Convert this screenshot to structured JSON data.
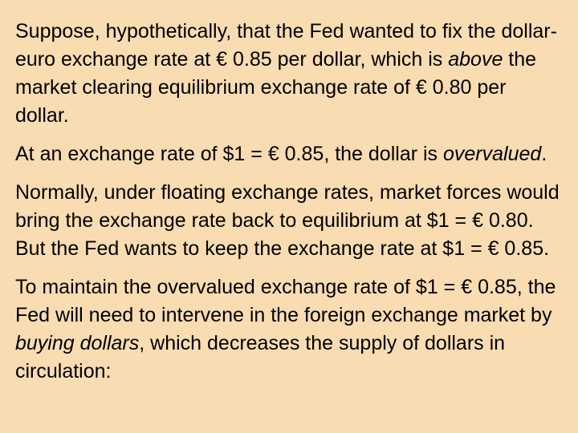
{
  "slide": {
    "p1": {
      "a": "Suppose, hypothetically, that the Fed wanted to fix the dollar-euro exchange rate at € 0.85 per dollar, which is ",
      "em": "above",
      "b": " the market clearing equilibrium exchange rate of € 0.80 per dollar."
    },
    "p2": {
      "a": "At an exchange rate of $1 = € 0.85, the dollar is ",
      "em": "overvalued",
      "b": "."
    },
    "p3": {
      "a": "Normally, under floating exchange rates, market forces would bring the exchange rate back to equilibrium at $1 = € 0.80.  But the Fed wants to keep the exchange rate at $1 = € 0.85."
    },
    "p4": {
      "a": "To maintain the overvalued exchange rate of $1 = € 0.85, the Fed will need to intervene in the foreign exchange market by ",
      "em": "buying dollars",
      "b": ", which decreases the supply of dollars in circulation:"
    }
  }
}
